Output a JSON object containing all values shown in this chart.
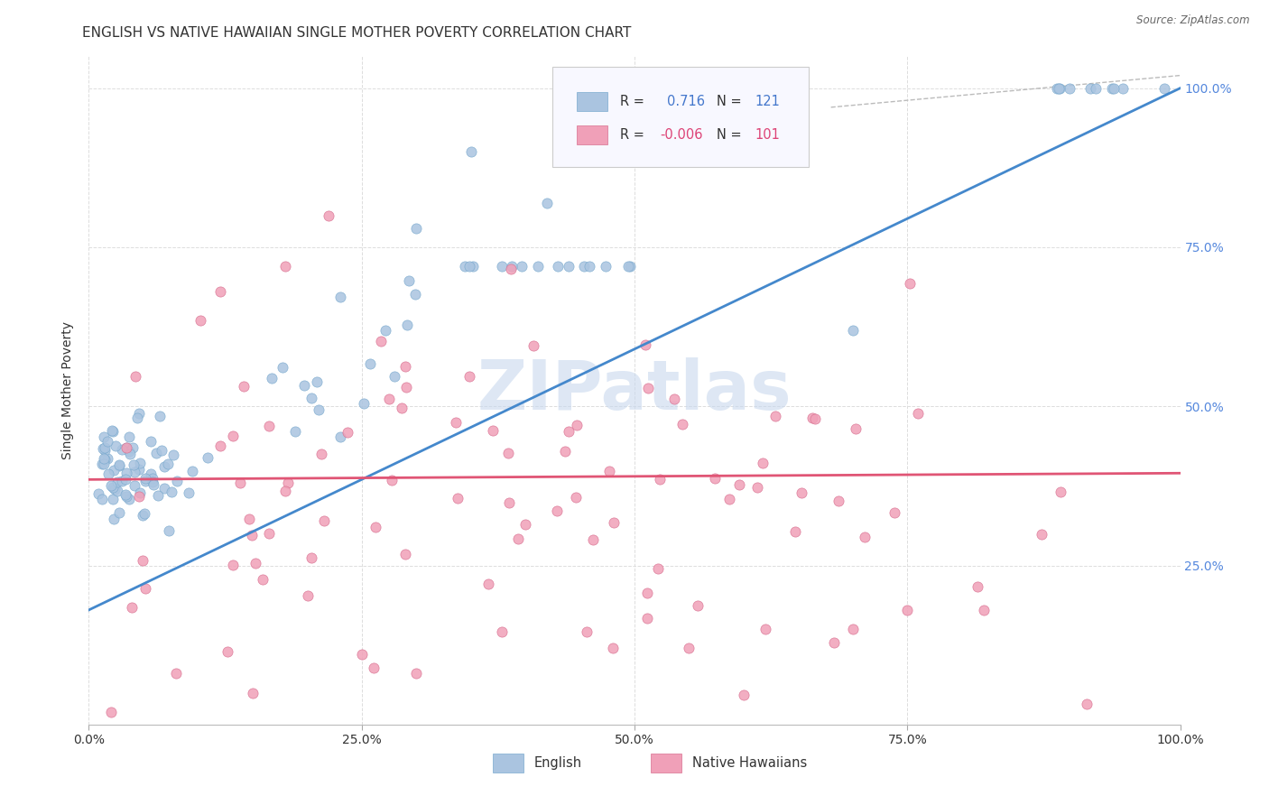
{
  "title": "ENGLISH VS NATIVE HAWAIIAN SINGLE MOTHER POVERTY CORRELATION CHART",
  "source": "Source: ZipAtlas.com",
  "ylabel": "Single Mother Poverty",
  "xlim": [
    0.0,
    1.0
  ],
  "ylim": [
    0.0,
    1.0
  ],
  "xtick_labels": [
    "0.0%",
    "25.0%",
    "50.0%",
    "75.0%",
    "100.0%"
  ],
  "xtick_positions": [
    0.0,
    0.25,
    0.5,
    0.75,
    1.0
  ],
  "ytick_labels": [
    "25.0%",
    "50.0%",
    "75.0%",
    "100.0%"
  ],
  "ytick_positions": [
    0.25,
    0.5,
    0.75,
    1.0
  ],
  "english_color": "#aac4e0",
  "english_edge_color": "#7aaace",
  "native_color": "#f0a0b8",
  "native_edge_color": "#d87090",
  "english_line_color": "#4488cc",
  "native_line_color": "#e05575",
  "ref_line_color": "#bbbbbb",
  "english_R": 0.716,
  "english_N": 121,
  "native_R": -0.006,
  "native_N": 101,
  "background_color": "#ffffff",
  "grid_color": "#dddddd",
  "title_fontsize": 11,
  "axis_label_fontsize": 10,
  "tick_fontsize": 10,
  "watermark_color": "#c8d8ee",
  "legend_box_color": "#f8f8ff",
  "legend_border_color": "#cccccc",
  "blue_text_color": "#4477cc",
  "pink_text_color": "#dd4477",
  "dark_text_color": "#333333",
  "right_tick_color": "#5588dd"
}
